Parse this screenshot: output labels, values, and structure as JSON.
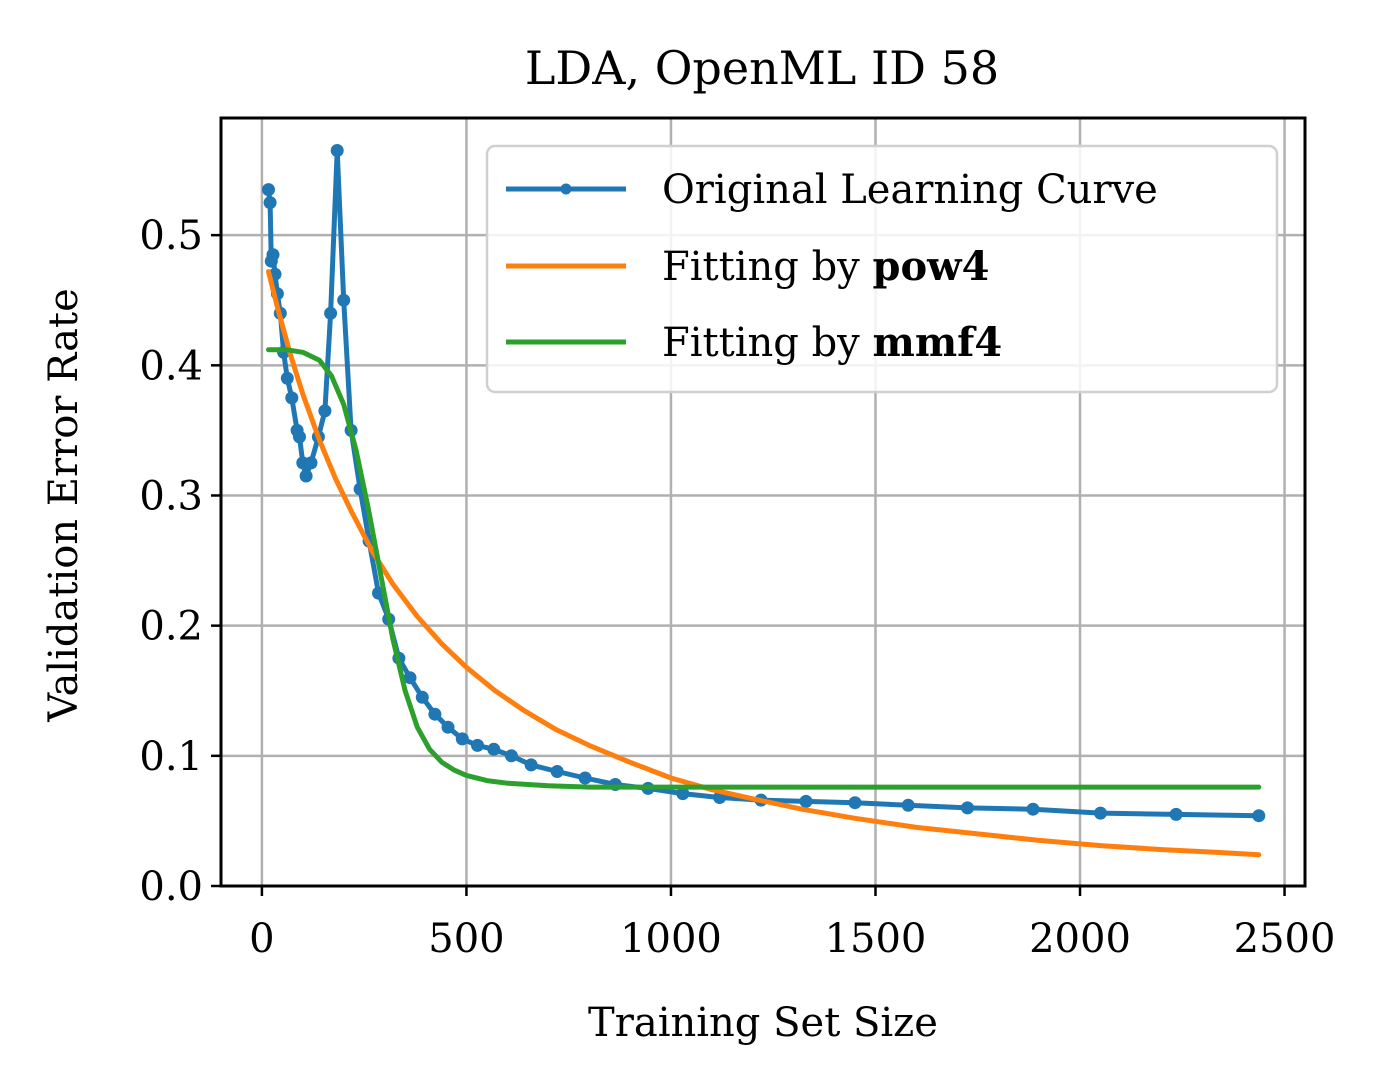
{
  "chart_data": {
    "type": "line",
    "title": "LDA, OpenML ID 58",
    "xlabel": "Training Set Size",
    "ylabel": "Validation Error Rate",
    "xlim": [
      -100,
      2550
    ],
    "ylim": [
      0.0,
      0.59
    ],
    "xticks": [
      0,
      500,
      1000,
      1500,
      2000,
      2500
    ],
    "xtick_labels": [
      "0",
      "500",
      "1000",
      "1500",
      "2000",
      "2500"
    ],
    "yticks": [
      0.0,
      0.1,
      0.2,
      0.3,
      0.4,
      0.5
    ],
    "ytick_labels": [
      "0.0",
      "0.1",
      "0.2",
      "0.3",
      "0.4",
      "0.5"
    ],
    "grid": true,
    "legend_position": "top-right",
    "series": [
      {
        "name": "Original Learning Curve",
        "color": "#1f77b4",
        "marker": "dot",
        "x": [
          16,
          20,
          23,
          27,
          32,
          38,
          45,
          53,
          62,
          73,
          86,
          92,
          100,
          108,
          120,
          138,
          154,
          168,
          184,
          200,
          218,
          240,
          262,
          285,
          310,
          335,
          362,
          392,
          423,
          455,
          490,
          527,
          567,
          610,
          658,
          722,
          790,
          864,
          944,
          1029,
          1119,
          1220,
          1330,
          1450,
          1580,
          1725,
          1885,
          2050,
          2235,
          2437
        ],
        "y": [
          0.535,
          0.525,
          0.48,
          0.485,
          0.47,
          0.455,
          0.44,
          0.41,
          0.39,
          0.375,
          0.35,
          0.345,
          0.325,
          0.315,
          0.325,
          0.345,
          0.365,
          0.44,
          0.565,
          0.45,
          0.35,
          0.305,
          0.265,
          0.225,
          0.205,
          0.175,
          0.16,
          0.145,
          0.132,
          0.122,
          0.113,
          0.108,
          0.105,
          0.1,
          0.093,
          0.088,
          0.083,
          0.078,
          0.075,
          0.071,
          0.068,
          0.066,
          0.065,
          0.064,
          0.062,
          0.06,
          0.059,
          0.056,
          0.055,
          0.054
        ]
      },
      {
        "name": "Fitting by pow4",
        "name_prefix": "Fitting by ",
        "name_bold": "pow4",
        "color": "#ff7f0e",
        "x": [
          16,
          40,
          70,
          100,
          140,
          180,
          220,
          270,
          320,
          380,
          440,
          500,
          570,
          640,
          720,
          800,
          900,
          1000,
          1100,
          1200,
          1320,
          1450,
          1600,
          1750,
          1900,
          2050,
          2200,
          2330,
          2437
        ],
        "y": [
          0.472,
          0.442,
          0.408,
          0.378,
          0.343,
          0.313,
          0.287,
          0.257,
          0.232,
          0.207,
          0.186,
          0.168,
          0.15,
          0.135,
          0.12,
          0.108,
          0.095,
          0.083,
          0.074,
          0.067,
          0.059,
          0.052,
          0.045,
          0.04,
          0.035,
          0.031,
          0.028,
          0.026,
          0.024
        ]
      },
      {
        "name": "Fitting by mmf4",
        "name_prefix": "Fitting by ",
        "name_bold": "mmf4",
        "color": "#2ca02c",
        "x": [
          16,
          60,
          100,
          140,
          170,
          200,
          230,
          260,
          290,
          320,
          350,
          380,
          410,
          440,
          470,
          500,
          550,
          600,
          700,
          800,
          900,
          1000,
          1200,
          1500,
          1800,
          2100,
          2437
        ],
        "y": [
          0.412,
          0.412,
          0.41,
          0.404,
          0.392,
          0.37,
          0.335,
          0.29,
          0.24,
          0.19,
          0.15,
          0.122,
          0.105,
          0.095,
          0.089,
          0.085,
          0.081,
          0.079,
          0.077,
          0.076,
          0.076,
          0.076,
          0.076,
          0.076,
          0.076,
          0.076,
          0.076
        ]
      }
    ]
  }
}
